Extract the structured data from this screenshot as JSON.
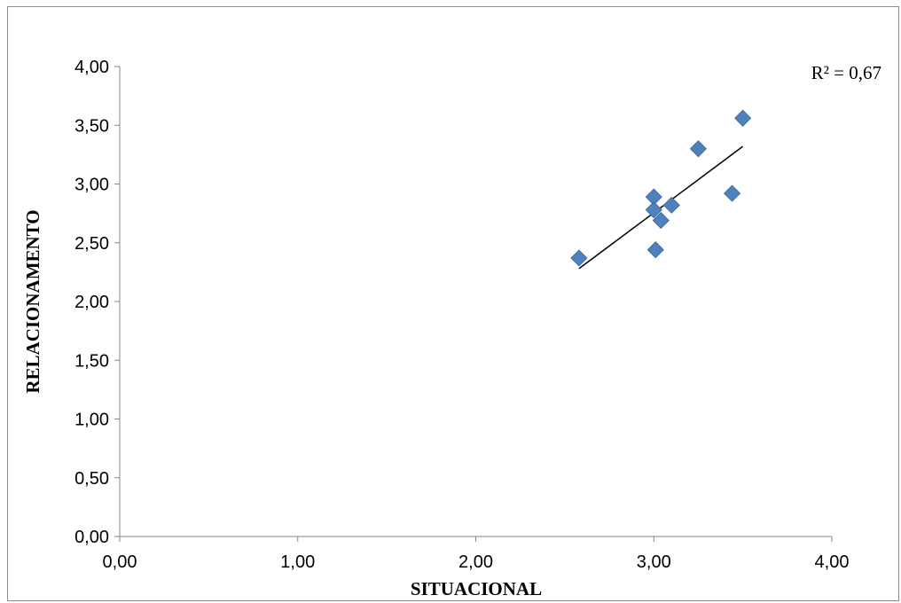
{
  "chart_data": {
    "type": "scatter",
    "xlabel": "SITUACIONAL",
    "ylabel": "RELACIONAMENTO",
    "xlim": [
      0,
      4
    ],
    "ylim": [
      0,
      4
    ],
    "x_ticks": [
      "0,00",
      "1,00",
      "2,00",
      "3,00",
      "4,00"
    ],
    "y_ticks": [
      "0,00",
      "0,50",
      "1,00",
      "1,50",
      "2,00",
      "2,50",
      "3,00",
      "3,50",
      "4,00"
    ],
    "x_tick_values": [
      0,
      1,
      2,
      3,
      4
    ],
    "y_tick_values": [
      0,
      0.5,
      1,
      1.5,
      2,
      2.5,
      3,
      3.5,
      4
    ],
    "grid": false,
    "series": [
      {
        "marker": "diamond",
        "color": "#4f81bd",
        "points": [
          {
            "x": 2.58,
            "y": 2.37
          },
          {
            "x": 3.0,
            "y": 2.89
          },
          {
            "x": 3.0,
            "y": 2.78
          },
          {
            "x": 3.01,
            "y": 2.44
          },
          {
            "x": 3.04,
            "y": 2.69
          },
          {
            "x": 3.1,
            "y": 2.82
          },
          {
            "x": 3.25,
            "y": 3.3
          },
          {
            "x": 3.44,
            "y": 2.92
          },
          {
            "x": 3.5,
            "y": 3.56
          }
        ]
      }
    ],
    "trendline": {
      "type": "linear",
      "color": "#000000",
      "from": {
        "x": 2.58,
        "y": 2.28
      },
      "to": {
        "x": 3.5,
        "y": 3.32
      }
    },
    "annotation": "R² = 0,67"
  }
}
